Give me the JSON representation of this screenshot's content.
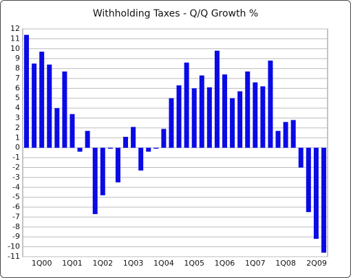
{
  "chart_data": {
    "type": "bar",
    "title": "Withholding Taxes - Q/Q Growth %",
    "categories": [
      null,
      null,
      "1Q00",
      null,
      null,
      null,
      "1Q01",
      null,
      null,
      null,
      "1Q02",
      null,
      null,
      null,
      "1Q03",
      null,
      null,
      null,
      "1Q04",
      null,
      null,
      null,
      "1Q05",
      null,
      null,
      null,
      "1Q06",
      null,
      null,
      null,
      "1Q07",
      null,
      null,
      null,
      "1Q08",
      null,
      null,
      null,
      null,
      "2Q09"
    ],
    "values": [
      11.4,
      8.5,
      9.7,
      8.4,
      4.0,
      7.7,
      3.4,
      -0.4,
      1.7,
      -6.7,
      -4.8,
      -0.1,
      -3.5,
      1.1,
      2.1,
      -2.3,
      -0.4,
      -0.1,
      1.9,
      5.0,
      6.3,
      8.6,
      6.0,
      7.3,
      6.1,
      9.8,
      7.4,
      5.0,
      5.7,
      7.7,
      6.6,
      6.2,
      8.8,
      1.7,
      2.6,
      2.8,
      -2.0,
      -6.5,
      -9.2,
      -10.6
    ],
    "color": "#0a0ae6",
    "ylim": [
      -11,
      12
    ],
    "yticks": [
      -11,
      -10,
      -9,
      -8,
      -7,
      -6,
      -5,
      -4,
      -3,
      -2,
      -1,
      0,
      1,
      2,
      3,
      4,
      5,
      6,
      7,
      8,
      9,
      10,
      11,
      12
    ],
    "grid": true
  }
}
